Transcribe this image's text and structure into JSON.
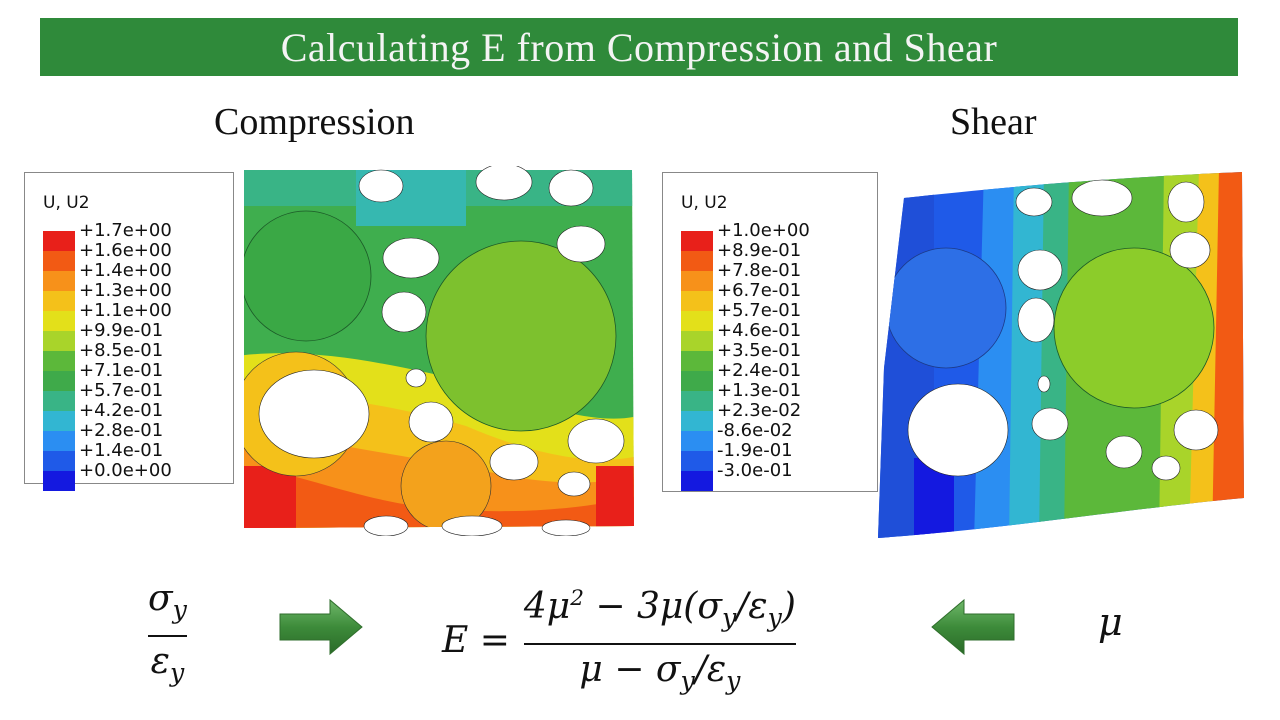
{
  "slide": {
    "title": "Calculating E from Compression and Shear"
  },
  "compression": {
    "heading": "Compression",
    "legend_title": "U, U2",
    "legend_labels": [
      "+1.7e+00",
      "+1.6e+00",
      "+1.4e+00",
      "+1.3e+00",
      "+1.1e+00",
      "+9.9e-01",
      "+8.5e-01",
      "+7.1e-01",
      "+5.7e-01",
      "+4.2e-01",
      "+2.8e-01",
      "+1.4e-01",
      "+0.0e+00"
    ]
  },
  "shear": {
    "heading": "Shear",
    "legend_title": "U, U2",
    "legend_labels": [
      "+1.0e+00",
      "+8.9e-01",
      "+7.8e-01",
      "+6.7e-01",
      "+5.7e-01",
      "+4.6e-01",
      "+3.5e-01",
      "+2.4e-01",
      "+1.3e-01",
      "+2.3e-02",
      "-8.6e-02",
      "-1.9e-01",
      "-3.0e-01"
    ]
  },
  "colors": {
    "title_bar": "#2f8a3a",
    "scale": [
      "#e8201a",
      "#f25a14",
      "#f7911a",
      "#f4c11a",
      "#e3e01a",
      "#a9d42a",
      "#5cb83a",
      "#3faa4a",
      "#39b486",
      "#32b6d2",
      "#2b8ef2",
      "#1f5ae8",
      "#1419e0"
    ],
    "arrow": "#3d8b3a"
  },
  "formula": {
    "left_num": "σ",
    "left_num_sub": "y",
    "left_den": "ε",
    "left_den_sub": "y",
    "lhs": "E =",
    "numerator_a": "4μ",
    "numerator_a_sup": "2",
    "numerator_b": " − 3μ(σ",
    "numerator_b_sub": "y",
    "numerator_c": "/ε",
    "numerator_c_sub": "y",
    "numerator_d": ")",
    "denominator_a": "μ − σ",
    "denominator_a_sub": "y",
    "denominator_b": "/ε",
    "denominator_b_sub": "y",
    "right_symbol": "μ"
  }
}
